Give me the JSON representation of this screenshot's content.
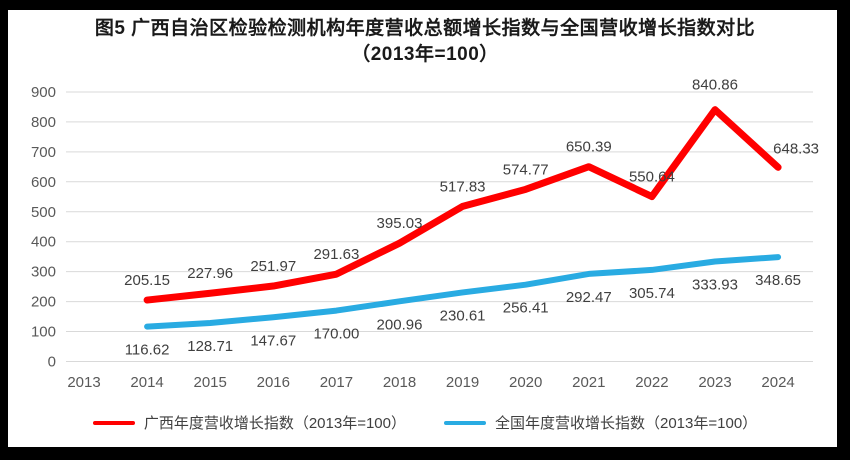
{
  "chart_data": {
    "type": "line",
    "title": "图5  广西自治区检验检测机构年度营收总额增长指数与全国营收增长指数对比（2013年=100）",
    "x": [
      "2013",
      "2014",
      "2015",
      "2016",
      "2017",
      "2018",
      "2019",
      "2020",
      "2021",
      "2022",
      "2023",
      "2024"
    ],
    "series": [
      {
        "name": "广西年度营收增长指数（2013年=100）",
        "color": "#FF0000",
        "values": [
          null,
          205.15,
          227.96,
          251.97,
          291.63,
          395.03,
          517.83,
          574.77,
          650.39,
          550.64,
          840.86,
          648.33
        ]
      },
      {
        "name": "全国年度营收增长指数（2013年=100）",
        "color": "#29ABE2",
        "values": [
          null,
          116.62,
          128.71,
          147.67,
          170.0,
          200.96,
          230.61,
          256.41,
          292.47,
          305.74,
          333.93,
          348.65
        ]
      }
    ],
    "xlabel": "",
    "ylabel": "",
    "ylim": [
      0,
      900
    ],
    "ytick_step": 100,
    "grid": true,
    "legend_position": "bottom",
    "data_label_format": "2 decimals",
    "gridline_color": "#D9D9D9",
    "axis_tick_color": "#595959",
    "data_label_color": "#3F3F3F"
  }
}
